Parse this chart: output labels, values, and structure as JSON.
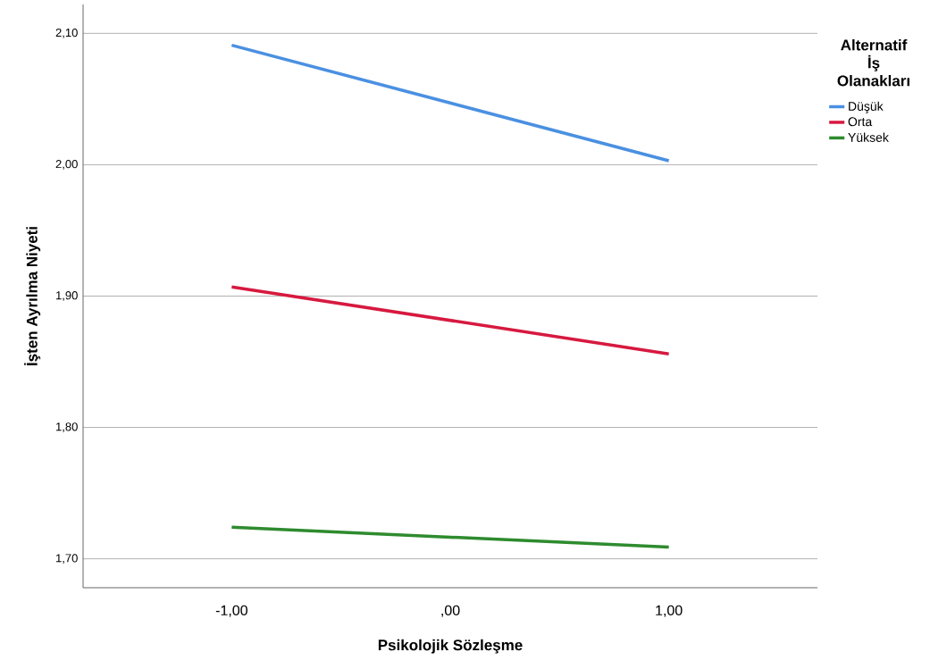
{
  "chart_data": {
    "type": "line",
    "xlabel": "Psikolojik Sözleşme",
    "ylabel": "İşten Ayrılma Niyeti",
    "legend_title": "Alternatif İş Olanakları",
    "x": [
      -1,
      1
    ],
    "series": [
      {
        "name": "Düşük",
        "color": "#4a90e2",
        "values": [
          2.091,
          2.003
        ]
      },
      {
        "name": "Orta",
        "color": "#d7193f",
        "values": [
          1.907,
          1.856
        ]
      },
      {
        "name": "Yüksek",
        "color": "#2e8b2e",
        "values": [
          1.724,
          1.709
        ]
      }
    ],
    "xlim": [
      -1.68,
      1.68
    ],
    "ylim": [
      1.678,
      2.122
    ],
    "xticks": [
      {
        "value": -1,
        "label": "-1,00"
      },
      {
        "value": 0,
        "label": ",00"
      },
      {
        "value": 1,
        "label": "1,00"
      }
    ],
    "yticks": [
      {
        "value": 1.7,
        "label": "1,70"
      },
      {
        "value": 1.8,
        "label": "1,80"
      },
      {
        "value": 1.9,
        "label": "1,90"
      },
      {
        "value": 2.0,
        "label": "2,00"
      },
      {
        "value": 2.1,
        "label": "2,10"
      }
    ],
    "grid": "y",
    "legend": "top right"
  }
}
